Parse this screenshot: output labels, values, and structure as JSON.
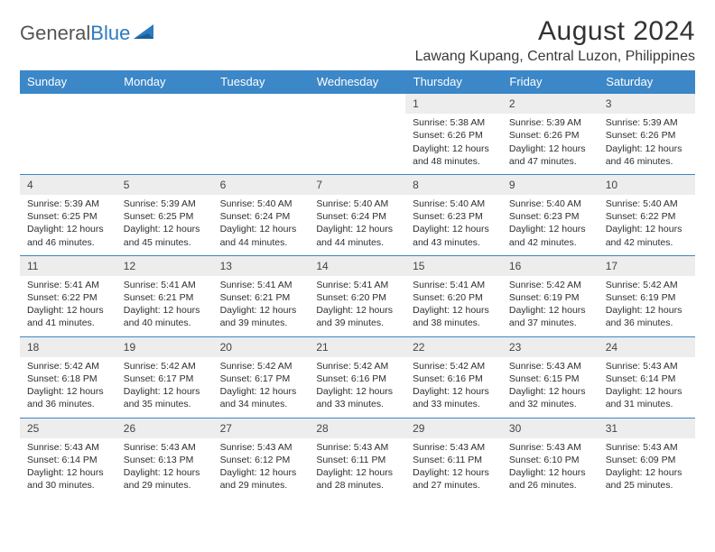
{
  "brand": {
    "part1": "General",
    "part2": "Blue"
  },
  "header": {
    "month_title": "August 2024",
    "location": "Lawang Kupang, Central Luzon, Philippines"
  },
  "colors": {
    "header_bg": "#3c87c7",
    "header_text": "#ffffff",
    "cell_border": "#3c87c7",
    "daynum_bg": "#ededed",
    "logo_blue": "#2b7bbf",
    "text": "#2e2e2e"
  },
  "calendar": {
    "day_names": [
      "Sunday",
      "Monday",
      "Tuesday",
      "Wednesday",
      "Thursday",
      "Friday",
      "Saturday"
    ],
    "weeks": [
      [
        null,
        null,
        null,
        null,
        {
          "n": "1",
          "sr": "5:38 AM",
          "ss": "6:26 PM",
          "dl": "12 hours and 48 minutes."
        },
        {
          "n": "2",
          "sr": "5:39 AM",
          "ss": "6:26 PM",
          "dl": "12 hours and 47 minutes."
        },
        {
          "n": "3",
          "sr": "5:39 AM",
          "ss": "6:26 PM",
          "dl": "12 hours and 46 minutes."
        }
      ],
      [
        {
          "n": "4",
          "sr": "5:39 AM",
          "ss": "6:25 PM",
          "dl": "12 hours and 46 minutes."
        },
        {
          "n": "5",
          "sr": "5:39 AM",
          "ss": "6:25 PM",
          "dl": "12 hours and 45 minutes."
        },
        {
          "n": "6",
          "sr": "5:40 AM",
          "ss": "6:24 PM",
          "dl": "12 hours and 44 minutes."
        },
        {
          "n": "7",
          "sr": "5:40 AM",
          "ss": "6:24 PM",
          "dl": "12 hours and 44 minutes."
        },
        {
          "n": "8",
          "sr": "5:40 AM",
          "ss": "6:23 PM",
          "dl": "12 hours and 43 minutes."
        },
        {
          "n": "9",
          "sr": "5:40 AM",
          "ss": "6:23 PM",
          "dl": "12 hours and 42 minutes."
        },
        {
          "n": "10",
          "sr": "5:40 AM",
          "ss": "6:22 PM",
          "dl": "12 hours and 42 minutes."
        }
      ],
      [
        {
          "n": "11",
          "sr": "5:41 AM",
          "ss": "6:22 PM",
          "dl": "12 hours and 41 minutes."
        },
        {
          "n": "12",
          "sr": "5:41 AM",
          "ss": "6:21 PM",
          "dl": "12 hours and 40 minutes."
        },
        {
          "n": "13",
          "sr": "5:41 AM",
          "ss": "6:21 PM",
          "dl": "12 hours and 39 minutes."
        },
        {
          "n": "14",
          "sr": "5:41 AM",
          "ss": "6:20 PM",
          "dl": "12 hours and 39 minutes."
        },
        {
          "n": "15",
          "sr": "5:41 AM",
          "ss": "6:20 PM",
          "dl": "12 hours and 38 minutes."
        },
        {
          "n": "16",
          "sr": "5:42 AM",
          "ss": "6:19 PM",
          "dl": "12 hours and 37 minutes."
        },
        {
          "n": "17",
          "sr": "5:42 AM",
          "ss": "6:19 PM",
          "dl": "12 hours and 36 minutes."
        }
      ],
      [
        {
          "n": "18",
          "sr": "5:42 AM",
          "ss": "6:18 PM",
          "dl": "12 hours and 36 minutes."
        },
        {
          "n": "19",
          "sr": "5:42 AM",
          "ss": "6:17 PM",
          "dl": "12 hours and 35 minutes."
        },
        {
          "n": "20",
          "sr": "5:42 AM",
          "ss": "6:17 PM",
          "dl": "12 hours and 34 minutes."
        },
        {
          "n": "21",
          "sr": "5:42 AM",
          "ss": "6:16 PM",
          "dl": "12 hours and 33 minutes."
        },
        {
          "n": "22",
          "sr": "5:42 AM",
          "ss": "6:16 PM",
          "dl": "12 hours and 33 minutes."
        },
        {
          "n": "23",
          "sr": "5:43 AM",
          "ss": "6:15 PM",
          "dl": "12 hours and 32 minutes."
        },
        {
          "n": "24",
          "sr": "5:43 AM",
          "ss": "6:14 PM",
          "dl": "12 hours and 31 minutes."
        }
      ],
      [
        {
          "n": "25",
          "sr": "5:43 AM",
          "ss": "6:14 PM",
          "dl": "12 hours and 30 minutes."
        },
        {
          "n": "26",
          "sr": "5:43 AM",
          "ss": "6:13 PM",
          "dl": "12 hours and 29 minutes."
        },
        {
          "n": "27",
          "sr": "5:43 AM",
          "ss": "6:12 PM",
          "dl": "12 hours and 29 minutes."
        },
        {
          "n": "28",
          "sr": "5:43 AM",
          "ss": "6:11 PM",
          "dl": "12 hours and 28 minutes."
        },
        {
          "n": "29",
          "sr": "5:43 AM",
          "ss": "6:11 PM",
          "dl": "12 hours and 27 minutes."
        },
        {
          "n": "30",
          "sr": "5:43 AM",
          "ss": "6:10 PM",
          "dl": "12 hours and 26 minutes."
        },
        {
          "n": "31",
          "sr": "5:43 AM",
          "ss": "6:09 PM",
          "dl": "12 hours and 25 minutes."
        }
      ]
    ],
    "labels": {
      "sunrise": "Sunrise:",
      "sunset": "Sunset:",
      "daylight": "Daylight:"
    }
  }
}
